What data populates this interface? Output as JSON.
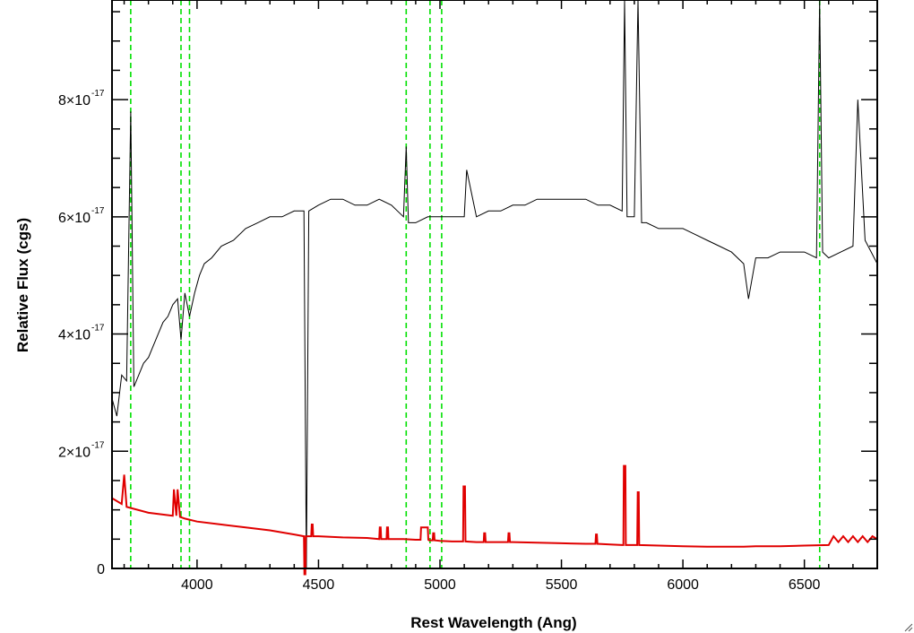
{
  "chart_data": {
    "type": "line",
    "xlabel": "Rest Wavelength (Ang)",
    "ylabel": "Relative Flux (cgs)",
    "xlim": [
      3650,
      6800
    ],
    "ylim": [
      0,
      9.7e-17
    ],
    "x_ticks": [
      4000,
      4500,
      5000,
      5500,
      6000,
      6500
    ],
    "x_tick_labels": [
      "4000",
      "4500",
      "5000",
      "5500",
      "6000",
      "6500"
    ],
    "y_ticks": [
      0,
      2e-17,
      4e-17,
      6e-17,
      8e-17
    ],
    "y_tick_labels": [
      {
        "mantissa": "0",
        "exp": ""
      },
      {
        "mantissa": "2×10",
        "exp": "-17"
      },
      {
        "mantissa": "4×10",
        "exp": "-17"
      },
      {
        "mantissa": "6×10",
        "exp": "-17"
      },
      {
        "mantissa": "8×10",
        "exp": "-17"
      }
    ],
    "reference_lines_x": [
      3727,
      3934,
      3969,
      4861,
      4959,
      5007,
      6563
    ],
    "series": [
      {
        "color": "#000000",
        "x": [
          3650,
          3670,
          3690,
          3710,
          3727,
          3740,
          3760,
          3780,
          3800,
          3820,
          3840,
          3860,
          3880,
          3900,
          3920,
          3934,
          3950,
          3969,
          3990,
          4010,
          4030,
          4060,
          4100,
          4150,
          4200,
          4250,
          4300,
          4350,
          4400,
          4440,
          4450,
          4460,
          4500,
          4550,
          4600,
          4650,
          4700,
          4750,
          4800,
          4850,
          4861,
          4870,
          4900,
          4950,
          5000,
          5050,
          5100,
          5110,
          5150,
          5200,
          5250,
          5300,
          5350,
          5400,
          5450,
          5500,
          5550,
          5600,
          5650,
          5700,
          5750,
          5760,
          5770,
          5800,
          5815,
          5830,
          5850,
          5900,
          5950,
          6000,
          6050,
          6100,
          6150,
          6200,
          6250,
          6270,
          6300,
          6350,
          6400,
          6450,
          6500,
          6550,
          6563,
          6575,
          6600,
          6650,
          6700,
          6720,
          6750,
          6800
        ],
        "y": [
          2.9e-17,
          2.6e-17,
          3.3e-17,
          3.2e-17,
          7.8e-17,
          3.1e-17,
          3.3e-17,
          3.5e-17,
          3.6e-17,
          3.8e-17,
          4e-17,
          4.2e-17,
          4.3e-17,
          4.5e-17,
          4.6e-17,
          3.9e-17,
          4.7e-17,
          4.3e-17,
          4.7e-17,
          5e-17,
          5.2e-17,
          5.3e-17,
          5.5e-17,
          5.6e-17,
          5.8e-17,
          5.9e-17,
          6e-17,
          6e-17,
          6.1e-17,
          6.1e-17,
          0,
          6.1e-17,
          6.2e-17,
          6.3e-17,
          6.3e-17,
          6.2e-17,
          6.2e-17,
          6.3e-17,
          6.2e-17,
          6e-17,
          7.2e-17,
          5.9e-17,
          5.9e-17,
          6e-17,
          6e-17,
          6e-17,
          6e-17,
          6.8e-17,
          6e-17,
          6.1e-17,
          6.1e-17,
          6.2e-17,
          6.2e-17,
          6.3e-17,
          6.3e-17,
          6.3e-17,
          6.3e-17,
          6.3e-17,
          6.2e-17,
          6.2e-17,
          6.1e-17,
          9.7e-17,
          6e-17,
          6e-17,
          9.7e-17,
          5.9e-17,
          5.9e-17,
          5.8e-17,
          5.8e-17,
          5.8e-17,
          5.7e-17,
          5.6e-17,
          5.5e-17,
          5.4e-17,
          5.2e-17,
          4.6e-17,
          5.3e-17,
          5.3e-17,
          5.4e-17,
          5.4e-17,
          5.4e-17,
          5.3e-17,
          9.7e-17,
          5.4e-17,
          5.3e-17,
          5.4e-17,
          5.5e-17,
          8e-17,
          5.6e-17,
          5.2e-17
        ]
      },
      {
        "color": "#e00000",
        "x": [
          3650,
          3690,
          3700,
          3710,
          3800,
          3900,
          3905,
          3915,
          3920,
          3930,
          3950,
          4000,
          4100,
          4200,
          4300,
          4400,
          4440,
          4442,
          4446,
          4448,
          4450,
          4470,
          4472,
          4476,
          4478,
          4500,
          4600,
          4700,
          4750,
          4752,
          4756,
          4758,
          4780,
          4782,
          4786,
          4788,
          4800,
          4850,
          4900,
          4920,
          4922,
          4950,
          4952,
          4955,
          4970,
          4972,
          4976,
          4978,
          5000,
          5050,
          5095,
          5097,
          5103,
          5105,
          5150,
          5180,
          5182,
          5186,
          5188,
          5200,
          5280,
          5282,
          5286,
          5288,
          5300,
          5400,
          5500,
          5600,
          5640,
          5642,
          5646,
          5648,
          5700,
          5750,
          5755,
          5757,
          5763,
          5765,
          5800,
          5812,
          5814,
          5818,
          5820,
          5900,
          6000,
          6100,
          6200,
          6250,
          6300,
          6400,
          6500,
          6600,
          6620,
          6640,
          6660,
          6680,
          6700,
          6720,
          6740,
          6760,
          6780,
          6800
        ],
        "y": [
          1.2e-17,
          1.1e-17,
          1.6e-17,
          1.05e-17,
          9.5e-18,
          9e-18,
          1.35e-17,
          9e-18,
          1.35e-17,
          8.8e-18,
          8.5e-18,
          8e-18,
          7.5e-18,
          7e-18,
          6.5e-18,
          5.8e-18,
          5.5e-18,
          -1e-18,
          -1e-18,
          5.5e-18,
          5.5e-18,
          5.5e-18,
          7.5e-18,
          7.5e-18,
          5.5e-18,
          5.5e-18,
          5.3e-18,
          5.2e-18,
          5e-18,
          7e-18,
          7e-18,
          5e-18,
          5e-18,
          7e-18,
          7e-18,
          5e-18,
          5e-18,
          5e-18,
          4.9e-18,
          4.9e-18,
          7e-18,
          7e-18,
          4.9e-18,
          4.8e-18,
          4.8e-18,
          6e-18,
          6e-18,
          4.8e-18,
          4.7e-18,
          4.6e-18,
          4.6e-18,
          1.4e-17,
          1.4e-17,
          4.6e-18,
          4.5e-18,
          4.5e-18,
          6e-18,
          6e-18,
          4.5e-18,
          4.5e-18,
          4.5e-18,
          6e-18,
          6e-18,
          4.5e-18,
          4.5e-18,
          4.4e-18,
          4.3e-18,
          4.2e-18,
          4.2e-18,
          5.8e-18,
          5.8e-18,
          4.2e-18,
          4.1e-18,
          4e-18,
          4e-18,
          1.75e-17,
          1.75e-17,
          4e-18,
          4e-18,
          4e-18,
          1.3e-17,
          1.3e-17,
          4e-18,
          3.9e-18,
          3.8e-18,
          3.7e-18,
          3.7e-18,
          3.7e-18,
          3.8e-18,
          3.8e-18,
          3.9e-18,
          4e-18,
          5.5e-18,
          4.5e-18,
          5.5e-18,
          4.5e-18,
          5.5e-18,
          4.5e-18,
          5.5e-18,
          4.5e-18,
          5.5e-18,
          5e-18
        ]
      }
    ],
    "colors": {
      "reference_line": "#00e000",
      "axes": "#000000"
    },
    "grid": false
  }
}
